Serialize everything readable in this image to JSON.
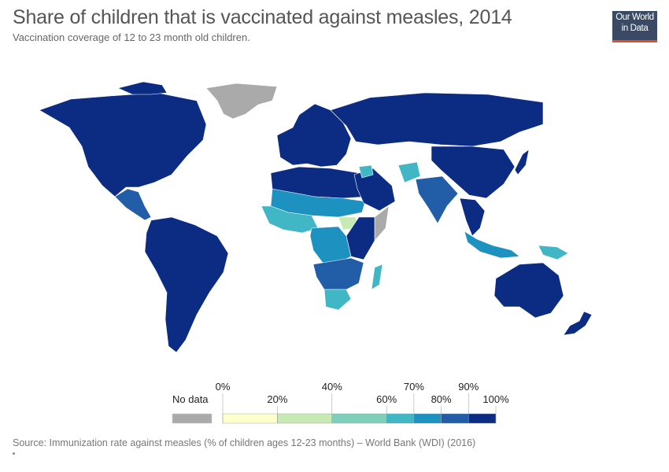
{
  "title": "Share of children that is vaccinated against measles, 2014",
  "subtitle": "Vaccination coverage of 12 to 23 month old children.",
  "logo": {
    "line1": "Our World",
    "line2": "in Data"
  },
  "source": "Source: Immunization rate against measles (% of children ages 12-23 months) – World Bank (WDI) (2016)",
  "legend": {
    "no_data_label": "No data",
    "no_data_color": "#aaaaaa",
    "bins": [
      {
        "from": 0,
        "to": 20,
        "color": "#ffffcc"
      },
      {
        "from": 20,
        "to": 40,
        "color": "#c7e9b4"
      },
      {
        "from": 40,
        "to": 60,
        "color": "#7fcdbb"
      },
      {
        "from": 60,
        "to": 70,
        "color": "#41b6c4"
      },
      {
        "from": 70,
        "to": 80,
        "color": "#1d91c0"
      },
      {
        "from": 80,
        "to": 90,
        "color": "#225ea8"
      },
      {
        "from": 90,
        "to": 100,
        "color": "#0c2c84"
      }
    ],
    "tick_labels": [
      "0%",
      "20%",
      "40%",
      "60%",
      "70%",
      "80%",
      "90%",
      "100%"
    ]
  },
  "regions": [
    {
      "name": "North America",
      "level": 6
    },
    {
      "name": "Greenland",
      "level": "none"
    },
    {
      "name": "Central America",
      "level": 5
    },
    {
      "name": "South America",
      "level": 6
    },
    {
      "name": "Europe",
      "level": 6
    },
    {
      "name": "Russia",
      "level": 6
    },
    {
      "name": "North Africa",
      "level": 6
    },
    {
      "name": "Sahel",
      "level": 4
    },
    {
      "name": "West Africa",
      "level": 3
    },
    {
      "name": "Central Africa",
      "level": 4
    },
    {
      "name": "South Sudan",
      "level": 1
    },
    {
      "name": "Somalia",
      "level": "none"
    },
    {
      "name": "East Africa",
      "level": 6
    },
    {
      "name": "Southern Africa",
      "level": 5
    },
    {
      "name": "South Africa",
      "level": 3
    },
    {
      "name": "Madagascar",
      "level": 3
    },
    {
      "name": "Middle East",
      "level": 6
    },
    {
      "name": "Iraq",
      "level": 3
    },
    {
      "name": "Afghanistan",
      "level": 3
    },
    {
      "name": "India",
      "level": 5
    },
    {
      "name": "China",
      "level": 6
    },
    {
      "name": "Southeast Asia",
      "level": 6
    },
    {
      "name": "Indonesia",
      "level": 4
    },
    {
      "name": "Papua New Guinea",
      "level": 3
    },
    {
      "name": "Australia",
      "level": 6
    },
    {
      "name": "New Zealand",
      "level": 6
    }
  ]
}
